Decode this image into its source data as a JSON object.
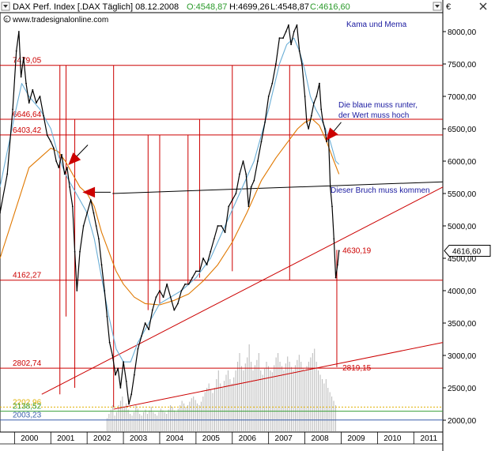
{
  "header": {
    "title_left": "DAX Perf. Index [.DAX  Täglich] 08.12.2008",
    "ohlc": [
      {
        "text": "O:4548,87",
        "color": "#2a9a2a"
      },
      {
        "text": "H:4699,26",
        "color": "#000000"
      },
      {
        "text": "L:4548,87",
        "color": "#000000"
      },
      {
        "text": "C:4616,60",
        "color": "#2a9a2a"
      }
    ],
    "source": "www.tradesignalonline.com",
    "currency": "€",
    "top_icons": [
      "dropdown-icon",
      "close-icon"
    ]
  },
  "colors": {
    "price": "#000000",
    "red_lines": "#cc0000",
    "kama": "#e07800",
    "mema": "#6aaed6",
    "trend_black": "#000000",
    "volume": "#b8b8b8",
    "level_yellow": "#e0b000",
    "level_green": "#3aa13a",
    "level_blue": "#3a5faa",
    "annotation": "#1a1aa0",
    "level_label": "#cc0000"
  },
  "annotations": {
    "legend": "Kama und Mema",
    "note_1_line1": "Die blaue muss runter,",
    "note_1_line2": "der Wert muss hoch",
    "note_2": "Dieser Bruch muss kommen"
  },
  "chart_data": {
    "type": "line",
    "ylim": [
      1800,
      8250
    ],
    "xlim": [
      1999.6,
      2011.8
    ],
    "y_ticks": [
      2000,
      2500,
      3000,
      3500,
      4000,
      4500,
      5000,
      5500,
      6000,
      6500,
      7000,
      7500,
      8000
    ],
    "y_tick_labels": [
      "2000,00",
      "2500,00",
      "3000,00",
      "3500,00",
      "4000,00",
      "4500,00",
      "5000,00",
      "5500,00",
      "6000,00",
      "6500,00",
      "7000,00",
      "7500,00",
      "8000,00"
    ],
    "x_ticks": [
      2000,
      2001,
      2002,
      2003,
      2004,
      2005,
      2006,
      2007,
      2008,
      2009,
      2010,
      2011
    ],
    "x_tick_labels": [
      "2000",
      "2001",
      "2002",
      "2003",
      "2004",
      "2005",
      "2006",
      "2007",
      "2008",
      "2009",
      "2010",
      "2011"
    ],
    "last_price_label": "4616,60",
    "last_price": 4616.6,
    "series": [
      {
        "name": "DAX",
        "x": [
          1999.6,
          1999.8,
          1999.95,
          2000.05,
          2000.12,
          2000.18,
          2000.25,
          2000.32,
          2000.4,
          2000.5,
          2000.6,
          2000.7,
          2000.8,
          2000.9,
          2001.0,
          2001.08,
          2001.15,
          2001.22,
          2001.3,
          2001.38,
          2001.45,
          2001.52,
          2001.6,
          2001.66,
          2001.72,
          2001.8,
          2001.9,
          2002.0,
          2002.1,
          2002.18,
          2002.25,
          2002.32,
          2002.4,
          2002.48,
          2002.55,
          2002.62,
          2002.7,
          2002.78,
          2002.85,
          2002.92,
          2003.0,
          2003.08,
          2003.15,
          2003.22,
          2003.3,
          2003.4,
          2003.5,
          2003.6,
          2003.7,
          2003.8,
          2003.9,
          2004.0,
          2004.1,
          2004.2,
          2004.3,
          2004.4,
          2004.5,
          2004.6,
          2004.7,
          2004.8,
          2004.9,
          2005.0,
          2005.1,
          2005.2,
          2005.3,
          2005.4,
          2005.5,
          2005.6,
          2005.7,
          2005.8,
          2005.9,
          2006.0,
          2006.1,
          2006.2,
          2006.3,
          2006.38,
          2006.45,
          2006.52,
          2006.6,
          2006.7,
          2006.8,
          2006.9,
          2007.0,
          2007.1,
          2007.2,
          2007.3,
          2007.4,
          2007.48,
          2007.55,
          2007.62,
          2007.7,
          2007.78,
          2007.85,
          2007.92,
          2008.0,
          2008.05,
          2008.1,
          2008.18,
          2008.25,
          2008.32,
          2008.4,
          2008.45,
          2008.5,
          2008.55,
          2008.6,
          2008.65,
          2008.7,
          2008.75,
          2008.8,
          2008.85,
          2008.9,
          2008.94
        ],
        "values": [
          5200,
          5800,
          6800,
          7700,
          8000,
          7300,
          7600,
          7200,
          6900,
          7100,
          6900,
          7000,
          6700,
          6400,
          6300,
          6200,
          6000,
          5900,
          6100,
          5800,
          5900,
          5600,
          5300,
          4600,
          4000,
          4600,
          5000,
          5200,
          5400,
          5200,
          5000,
          4800,
          4400,
          4000,
          3600,
          3200,
          3000,
          2700,
          2800,
          2500,
          2900,
          2600,
          2250,
          2400,
          2700,
          3100,
          3300,
          3500,
          3400,
          3700,
          3900,
          4000,
          3900,
          4100,
          3900,
          3700,
          3800,
          4000,
          4100,
          4100,
          4200,
          4300,
          4300,
          4500,
          4400,
          4600,
          4800,
          5000,
          5000,
          4900,
          5300,
          5400,
          5500,
          5800,
          6000,
          5800,
          5300,
          5600,
          5700,
          6000,
          6300,
          6600,
          7000,
          7200,
          7500,
          7900,
          7900,
          8000,
          8100,
          7800,
          8000,
          8100,
          7700,
          7500,
          7000,
          6600,
          6500,
          6700,
          6900,
          7000,
          7200,
          6800,
          6600,
          6500,
          6300,
          6400,
          5600,
          5300,
          4800,
          4200,
          4400,
          4616.6
        ]
      },
      {
        "name": "Kama",
        "x": [
          1999.6,
          2000.0,
          2000.4,
          2000.8,
          2001.0,
          2001.2,
          2001.4,
          2001.6,
          2001.8,
          2002.0,
          2002.2,
          2002.4,
          2002.6,
          2002.8,
          2003.0,
          2003.3,
          2003.6,
          2004.0,
          2004.4,
          2004.8,
          2005.2,
          2005.6,
          2006.0,
          2006.4,
          2006.8,
          2007.2,
          2007.6,
          2007.8,
          2008.0,
          2008.2,
          2008.4,
          2008.6,
          2008.8,
          2008.94
        ],
        "values": [
          4500,
          5200,
          5900,
          6100,
          6200,
          6150,
          6000,
          5800,
          5600,
          5500,
          5300,
          4900,
          4600,
          4300,
          4100,
          3900,
          3800,
          3780,
          3850,
          3950,
          4150,
          4400,
          4750,
          5200,
          5700,
          6050,
          6350,
          6500,
          6600,
          6650,
          6550,
          6300,
          6000,
          5800
        ]
      },
      {
        "name": "Mema",
        "x": [
          1999.6,
          2000.0,
          2000.2,
          2000.4,
          2000.7,
          2001.0,
          2001.2,
          2001.4,
          2001.6,
          2001.8,
          2002.0,
          2002.2,
          2002.4,
          2002.6,
          2002.8,
          2003.0,
          2003.2,
          2003.4,
          2003.7,
          2004.0,
          2004.3,
          2004.6,
          2005.0,
          2005.4,
          2005.8,
          2006.2,
          2006.6,
          2007.0,
          2007.3,
          2007.5,
          2007.7,
          2007.85,
          2008.0,
          2008.15,
          2008.3,
          2008.5,
          2008.7,
          2008.85,
          2008.94
        ],
        "values": [
          5600,
          6700,
          7200,
          7000,
          6800,
          6500,
          6100,
          5800,
          5600,
          5400,
          5200,
          4800,
          4200,
          3600,
          3100,
          2900,
          2900,
          3200,
          3500,
          3800,
          3900,
          4000,
          4200,
          4500,
          5000,
          5500,
          6000,
          6800,
          7500,
          7800,
          7900,
          7700,
          7400,
          7000,
          6800,
          6600,
          6300,
          6000,
          5950
        ]
      }
    ],
    "volume": {
      "name": "Volume",
      "x_start": 2002.55,
      "x_end": 2008.9,
      "bar_count": 120,
      "relative_heights": [
        0.15,
        0.2,
        0.25,
        0.3,
        0.18,
        0.22,
        0.3,
        0.35,
        0.4,
        0.28,
        0.32,
        0.25,
        0.2,
        0.18,
        0.22,
        0.3,
        0.26,
        0.2,
        0.18,
        0.22,
        0.25,
        0.2,
        0.24,
        0.28,
        0.22,
        0.2,
        0.18,
        0.22,
        0.26,
        0.24,
        0.22,
        0.2,
        0.25,
        0.3,
        0.28,
        0.24,
        0.22,
        0.26,
        0.3,
        0.35,
        0.32,
        0.28,
        0.3,
        0.34,
        0.38,
        0.4,
        0.36,
        0.32,
        0.3,
        0.34,
        0.4,
        0.45,
        0.5,
        0.55,
        0.48,
        0.44,
        0.5,
        0.6,
        0.7,
        0.55,
        0.5,
        0.58,
        0.65,
        0.7,
        0.6,
        0.55,
        0.62,
        0.7,
        0.8,
        0.9,
        0.75,
        0.7,
        0.78,
        0.85,
        1.0,
        0.8,
        0.7,
        0.76,
        0.82,
        0.9,
        0.7,
        0.65,
        0.72,
        0.8,
        0.75,
        0.7,
        0.68,
        0.76,
        0.85,
        0.9,
        0.8,
        0.75,
        0.7,
        0.78,
        0.86,
        0.8,
        0.74,
        0.7,
        0.76,
        0.82,
        0.88,
        0.8,
        0.72,
        0.7,
        0.75,
        0.8,
        0.85,
        0.9,
        0.95,
        0.8,
        0.7,
        0.65,
        0.6,
        0.55,
        0.6,
        0.5,
        0.45,
        0.4,
        0.35,
        0.3
      ]
    },
    "levels": [
      {
        "label": "7479,05",
        "value": 7479.05,
        "color": "red"
      },
      {
        "label": "6646,64",
        "value": 6646.64,
        "color": "red"
      },
      {
        "label": "6403,42",
        "value": 6403.42,
        "color": "red"
      },
      {
        "label": "4162,27",
        "value": 4162.27,
        "color": "red"
      },
      {
        "label": "2802,74",
        "value": 2802.74,
        "color": "red"
      },
      {
        "label": "2202,96",
        "value": 2202.96,
        "color": "yellow",
        "dashed": true
      },
      {
        "label": "2138,52",
        "value": 2138.52,
        "color": "green"
      },
      {
        "label": "2003,23",
        "value": 2003.23,
        "color": "blue"
      }
    ],
    "value_labels": [
      {
        "text": "4630,19",
        "x": 2008.97,
        "y": 4630.19
      },
      {
        "text": "2819,15",
        "x": 2008.97,
        "y": 2819.15
      }
    ],
    "vertical_lines": [
      {
        "x": 2001.25,
        "y_from": 2400,
        "y_to": 7479
      },
      {
        "x": 2001.42,
        "y_from": 3600,
        "y_to": 7479
      },
      {
        "x": 2001.66,
        "y_from": 2500,
        "y_to": 6647
      },
      {
        "x": 2002.73,
        "y_from": 2200,
        "y_to": 7479
      },
      {
        "x": 2003.68,
        "y_from": 3700,
        "y_to": 6403
      },
      {
        "x": 2004.0,
        "y_from": 3800,
        "y_to": 6403
      },
      {
        "x": 2004.78,
        "y_from": 4100,
        "y_to": 6403
      },
      {
        "x": 2005.1,
        "y_from": 4200,
        "y_to": 6647
      },
      {
        "x": 2006.0,
        "y_from": 4300,
        "y_to": 7479
      },
      {
        "x": 2007.58,
        "y_from": 4162,
        "y_to": 7479
      },
      {
        "x": 2008.88,
        "y_from": 2819,
        "y_to": 4630
      }
    ],
    "trend_lines": [
      {
        "name": "support-trendline-1",
        "color": "red",
        "x1": 2000.75,
        "y1": 2400,
        "x2": 2011.8,
        "y2": 5600
      },
      {
        "name": "support-trendline-2",
        "color": "red",
        "x1": 2002.73,
        "y1": 2170,
        "x2": 2011.8,
        "y2": 3200
      },
      {
        "name": "break-line",
        "color": "black",
        "x1": 2002.7,
        "y1": 5500,
        "x2": 2011.8,
        "y2": 5680
      }
    ],
    "arrows": [
      {
        "name": "red-arrow-1",
        "x1": 2002.02,
        "y1": 6250,
        "x2": 2001.5,
        "y2": 5950
      },
      {
        "name": "red-arrow-2",
        "x1": 2002.65,
        "y1": 5520,
        "x2": 2001.9,
        "y2": 5520
      },
      {
        "name": "red-arrow-3",
        "x1": 2009.0,
        "y1": 6600,
        "x2": 2008.6,
        "y2": 6330
      }
    ],
    "grid": false
  }
}
